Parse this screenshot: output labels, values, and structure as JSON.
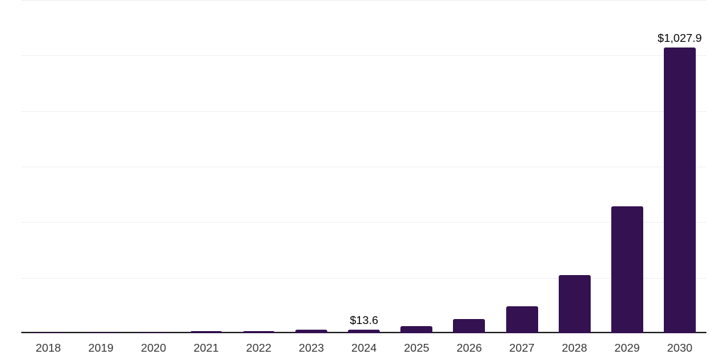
{
  "chart_data": {
    "type": "bar",
    "title": "",
    "xlabel": "",
    "ylabel": "",
    "categories": [
      "2018",
      "2019",
      "2020",
      "2021",
      "2022",
      "2023",
      "2024",
      "2025",
      "2026",
      "2027",
      "2028",
      "2029",
      "2030"
    ],
    "values": [
      1.0,
      1.8,
      2.7,
      7.3,
      7.0,
      12.0,
      13.6,
      26.5,
      50.0,
      97.0,
      210.0,
      457.0,
      1027.9
    ],
    "value_labels": {
      "2024": "$13.6",
      "2030": "$1,027.9"
    },
    "ylim": [
      0,
      1200
    ],
    "y_grid_step": 200,
    "grid": true,
    "legend": "none",
    "y_axis_labels_visible": false,
    "colors": {
      "bar": "#341251",
      "axis_line": "#262626",
      "gridline": "#f0f0f0",
      "tick_label": "#333333",
      "value_label": "#000000",
      "background": "#ffffff"
    }
  }
}
